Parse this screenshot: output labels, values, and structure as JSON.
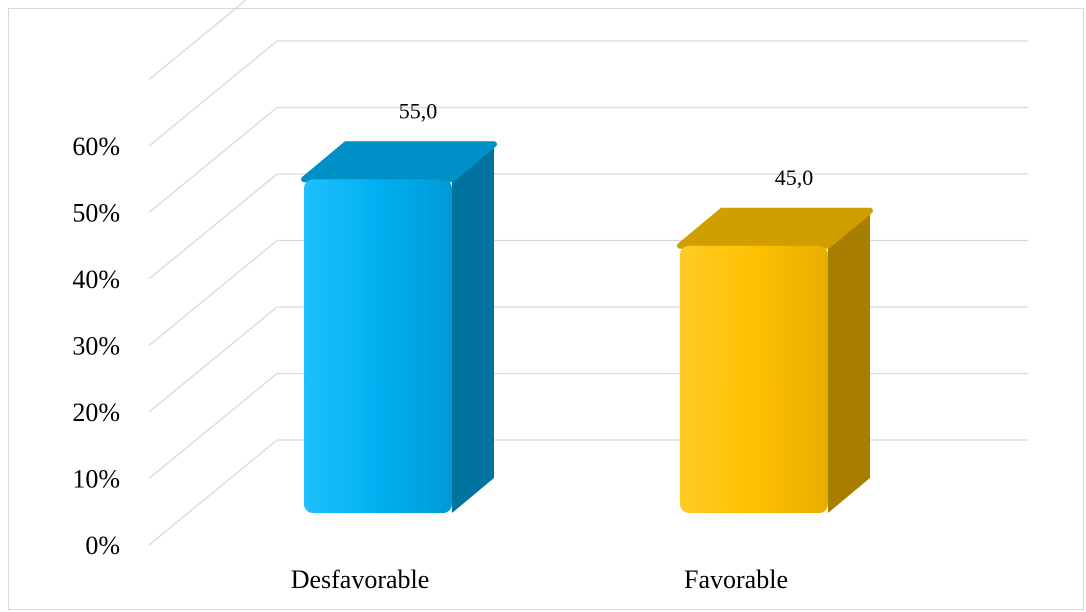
{
  "chart_data": {
    "type": "bar",
    "categories": [
      "Desfavorable",
      "Favorable"
    ],
    "values": [
      55.0,
      45.0
    ],
    "data_labels": [
      "55,0",
      "45,0"
    ],
    "y_ticks": [
      "0%",
      "10%",
      "20%",
      "30%",
      "40%",
      "50%",
      "60%"
    ],
    "ylim": [
      0,
      70
    ],
    "grid": true,
    "legend": "none",
    "three_d": true
  },
  "colors": {
    "bar_front": [
      "#00b0f0",
      "#ffc000"
    ],
    "bar_side": [
      "#00739e",
      "#a87e00"
    ],
    "bar_top": [
      "#0090c8",
      "#d19e00"
    ],
    "grid": "#d9d9d9"
  }
}
